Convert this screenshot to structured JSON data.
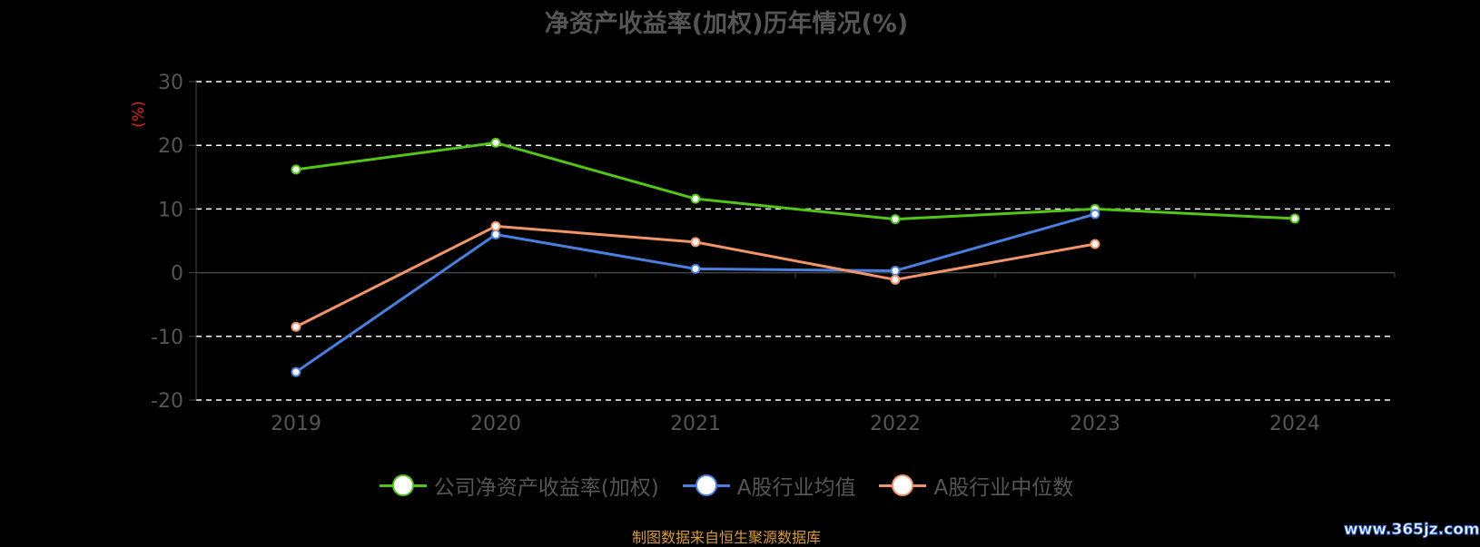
{
  "chart_data": {
    "type": "line",
    "title": "净资产收益率(加权)历年情况(%)",
    "ylabel": "(%)",
    "xlabel": "",
    "categories": [
      "2019",
      "2020",
      "2021",
      "2022",
      "2023",
      "2024"
    ],
    "ylim": [
      -20,
      30
    ],
    "yticks": [
      30,
      20,
      10,
      0,
      -10,
      -20
    ],
    "grid": true,
    "legend_position": "bottom",
    "series": [
      {
        "name": "公司净资产收益率(加权)",
        "color": "#52c41a",
        "values": [
          16.2,
          20.4,
          11.6,
          8.4,
          10.0,
          8.5
        ]
      },
      {
        "name": "A股行业均值",
        "color": "#4a7fe0",
        "values": [
          -15.6,
          6.0,
          0.6,
          0.3,
          9.2,
          null
        ]
      },
      {
        "name": "A股行业中位数",
        "color": "#f0946a",
        "values": [
          -8.5,
          7.3,
          4.8,
          -1.1,
          4.5,
          null
        ]
      }
    ]
  },
  "footer": {
    "source": "制图数据来自恒生聚源数据库",
    "watermark": "www.365jz.com"
  }
}
